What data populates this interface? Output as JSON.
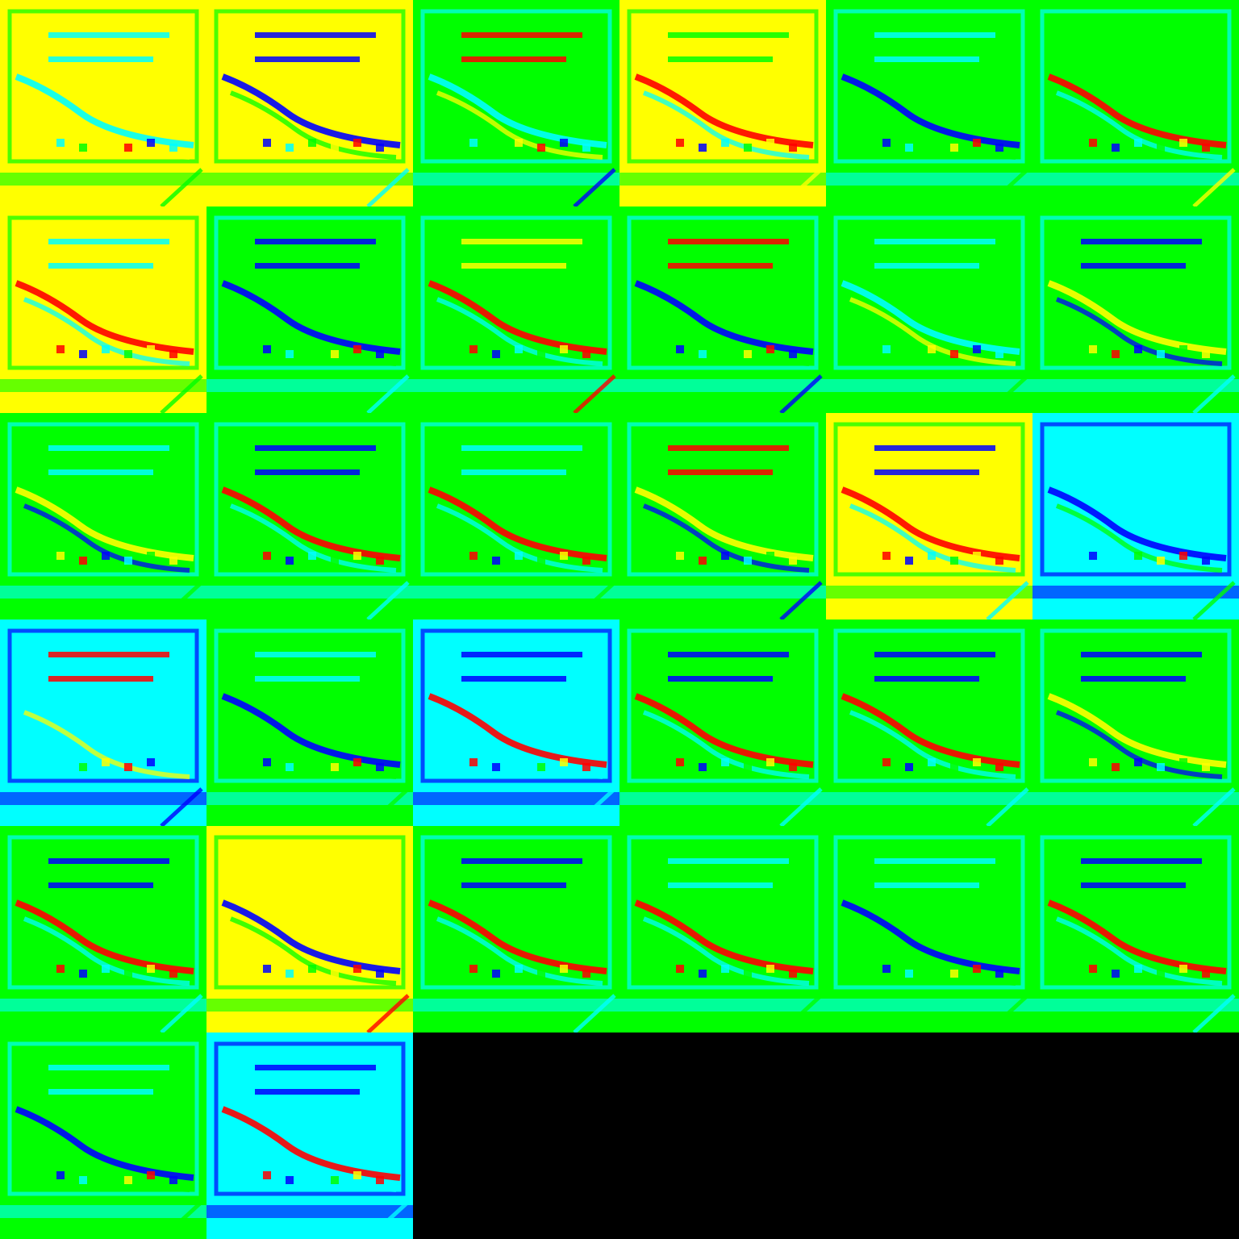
{
  "grid": {
    "columns": 6,
    "rows": 6,
    "filled": 32
  },
  "colormap": [
    "#0000ff",
    "#00ffff",
    "#00ff00",
    "#ffff00",
    "#ff0000"
  ],
  "background": "#000000",
  "tiles": [
    {
      "base": 3,
      "curve": 1,
      "bars": 1
    },
    {
      "base": 3,
      "curve": 0,
      "bars": 0
    },
    {
      "base": 2,
      "curve": 1,
      "bars": 4
    },
    {
      "base": 3,
      "curve": 4,
      "bars": 2
    },
    {
      "base": 2,
      "curve": 0,
      "bars": 1
    },
    {
      "base": 2,
      "curve": 4,
      "bars": 2
    },
    {
      "base": 3,
      "curve": 4,
      "bars": 1
    },
    {
      "base": 2,
      "curve": 0,
      "bars": 0
    },
    {
      "base": 2,
      "curve": 4,
      "bars": 3
    },
    {
      "base": 2,
      "curve": 0,
      "bars": 4
    },
    {
      "base": 2,
      "curve": 1,
      "bars": 1
    },
    {
      "base": 2,
      "curve": 3,
      "bars": 0
    },
    {
      "base": 2,
      "curve": 3,
      "bars": 1
    },
    {
      "base": 2,
      "curve": 4,
      "bars": 0
    },
    {
      "base": 2,
      "curve": 4,
      "bars": 1
    },
    {
      "base": 2,
      "curve": 3,
      "bars": 4
    },
    {
      "base": 3,
      "curve": 4,
      "bars": 0
    },
    {
      "base": 1,
      "curve": 0,
      "bars": 1
    },
    {
      "base": 1,
      "curve": 1,
      "bars": 4
    },
    {
      "base": 2,
      "curve": 0,
      "bars": 1
    },
    {
      "base": 1,
      "curve": 4,
      "bars": 0
    },
    {
      "base": 2,
      "curve": 4,
      "bars": 0
    },
    {
      "base": 2,
      "curve": 4,
      "bars": 0
    },
    {
      "base": 2,
      "curve": 3,
      "bars": 0
    },
    {
      "base": 2,
      "curve": 4,
      "bars": 0
    },
    {
      "base": 3,
      "curve": 0,
      "bars": 3
    },
    {
      "base": 2,
      "curve": 4,
      "bars": 0
    },
    {
      "base": 2,
      "curve": 4,
      "bars": 1
    },
    {
      "base": 2,
      "curve": 0,
      "bars": 1
    },
    {
      "base": 2,
      "curve": 4,
      "bars": 0
    },
    {
      "base": 2,
      "curve": 0,
      "bars": 1
    },
    {
      "base": 1,
      "curve": 4,
      "bars": 0
    }
  ]
}
